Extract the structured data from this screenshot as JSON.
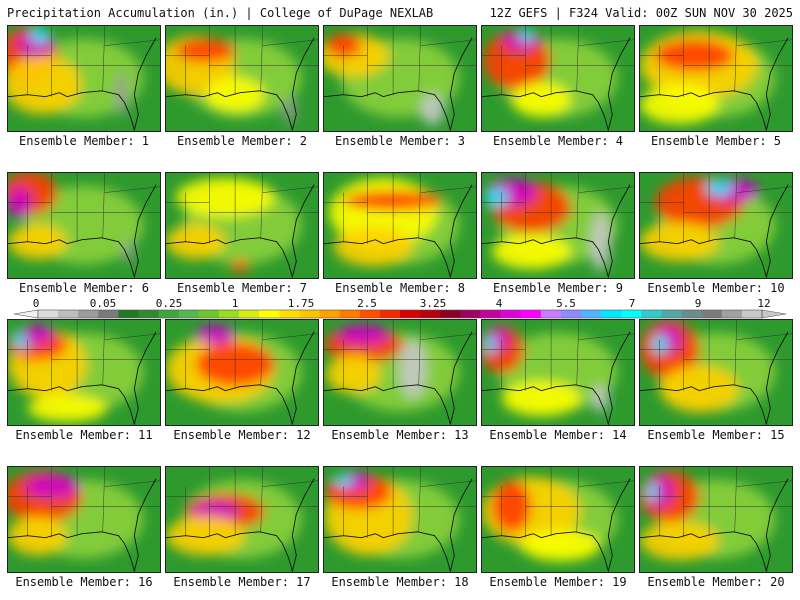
{
  "header": {
    "left": "Precipitation Accumulation (in.) | College of DuPage NEXLAB",
    "right": "12Z GEFS | F324 Valid: 00Z SUN NOV 30 2025"
  },
  "colorbar": {
    "labels": [
      "0",
      "0.05",
      "0.25",
      "1",
      "1.75",
      "2.5",
      "3.25",
      "4",
      "5.5",
      "7",
      "9",
      "12"
    ],
    "colors": [
      "#dcdcdc",
      "#bdbdbd",
      "#9c9c9c",
      "#7a7a7a",
      "#1e7a1e",
      "#2e8b2e",
      "#3fa53f",
      "#52b852",
      "#6fc82a",
      "#9adc1e",
      "#d8ec14",
      "#ffff00",
      "#ffe000",
      "#ffc400",
      "#ffa200",
      "#ff7a00",
      "#ff5000",
      "#f42a00",
      "#d80000",
      "#b80010",
      "#8c0020",
      "#a00060",
      "#c400a0",
      "#e000d8",
      "#ff00ff",
      "#c87cff",
      "#8c8cff",
      "#50b4ff",
      "#00e8ff",
      "#00ffff",
      "#30cccc",
      "#50a8a8",
      "#6a8c8c",
      "#7c7c7c",
      "#a0a0a0",
      "#c8c8c8"
    ]
  },
  "panels": [
    {
      "caption": "Ensemble Member: 1"
    },
    {
      "caption": "Ensemble Member: 2"
    },
    {
      "caption": "Ensemble Member: 3"
    },
    {
      "caption": "Ensemble Member: 4"
    },
    {
      "caption": "Ensemble Member: 5"
    },
    {
      "caption": "Ensemble Member: 6"
    },
    {
      "caption": "Ensemble Member: 7"
    },
    {
      "caption": "Ensemble Member: 8"
    },
    {
      "caption": "Ensemble Member: 9"
    },
    {
      "caption": "Ensemble Member: 10"
    },
    {
      "caption": "Ensemble Member: 11"
    },
    {
      "caption": "Ensemble Member: 12"
    },
    {
      "caption": "Ensemble Member: 13"
    },
    {
      "caption": "Ensemble Member: 14"
    },
    {
      "caption": "Ensemble Member: 15"
    },
    {
      "caption": "Ensemble Member: 16"
    },
    {
      "caption": "Ensemble Member: 17"
    },
    {
      "caption": "Ensemble Member: 18"
    },
    {
      "caption": "Ensemble Member: 19"
    },
    {
      "caption": "Ensemble Member: 20"
    }
  ]
}
